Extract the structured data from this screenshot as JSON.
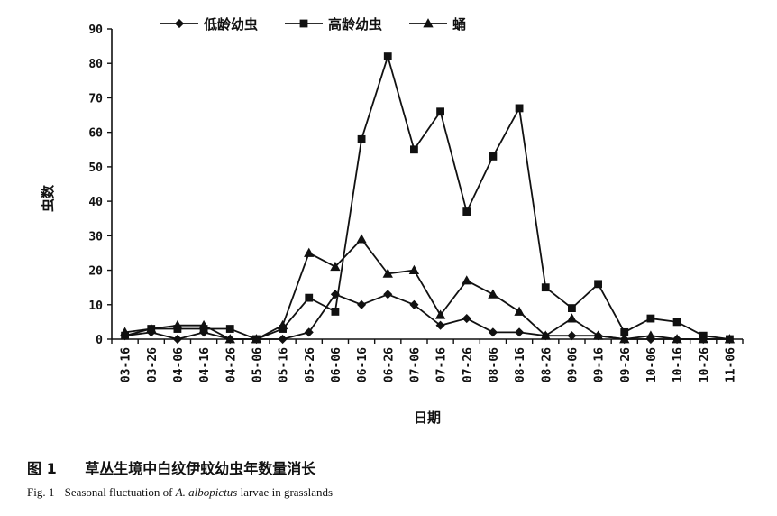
{
  "chart_data": {
    "type": "line",
    "title": "",
    "xlabel": "日期",
    "ylabel": "虫数",
    "ylim": [
      0,
      90
    ],
    "yticks": [
      0,
      10,
      20,
      30,
      40,
      50,
      60,
      70,
      80,
      90
    ],
    "grid": false,
    "legend_position": "top",
    "categories": [
      "03-16",
      "03-26",
      "04-06",
      "04-16",
      "04-26",
      "05-06",
      "05-16",
      "05-26",
      "06-06",
      "06-16",
      "06-26",
      "07-06",
      "07-16",
      "07-26",
      "08-06",
      "08-16",
      "08-26",
      "09-06",
      "09-16",
      "09-26",
      "10-06",
      "10-16",
      "10-26",
      "11-06"
    ],
    "series": [
      {
        "name": "低龄幼虫",
        "marker": "diamond",
        "values": [
          1,
          2,
          0,
          2,
          0,
          0,
          0,
          2,
          13,
          10,
          13,
          10,
          4,
          6,
          2,
          2,
          1,
          1,
          1,
          0,
          0,
          0,
          0,
          0
        ]
      },
      {
        "name": "高龄幼虫",
        "marker": "square",
        "values": [
          1,
          3,
          3,
          3,
          3,
          0,
          3,
          12,
          8,
          58,
          82,
          55,
          66,
          37,
          53,
          67,
          15,
          9,
          16,
          2,
          6,
          5,
          1,
          0
        ]
      },
      {
        "name": "蛹",
        "marker": "triangle",
        "values": [
          2,
          3,
          4,
          4,
          0,
          0,
          4,
          25,
          21,
          29,
          19,
          20,
          7,
          17,
          13,
          8,
          1,
          6,
          1,
          0,
          1,
          0,
          0,
          0
        ]
      }
    ]
  },
  "caption": {
    "cn_number": "图 1",
    "cn_text": "草丛生境中白纹伊蚊幼虫年数量消长",
    "en_number": "Fig. 1",
    "en_text_before": "Seasonal fluctuation of",
    "en_species_genus": "A.",
    "en_species_name": "albopictus",
    "en_text_after": "larvae in grasslands"
  },
  "colors": {
    "ink": "#111111",
    "background": "#ffffff"
  }
}
